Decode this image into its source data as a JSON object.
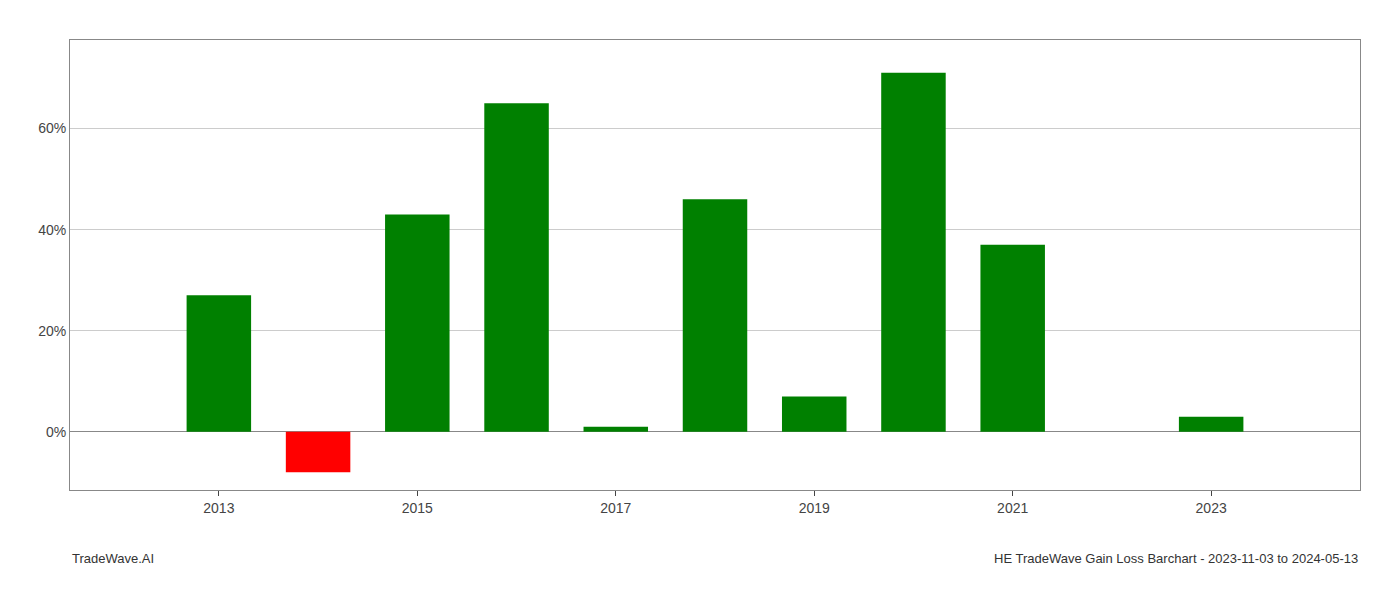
{
  "chart_data": {
    "type": "bar",
    "x": [
      2013,
      2014,
      2015,
      2016,
      2017,
      2018,
      2019,
      2020,
      2021,
      2023
    ],
    "values": [
      0.27,
      -0.08,
      0.43,
      0.65,
      0.01,
      0.46,
      0.07,
      0.71,
      0.37,
      0.03
    ],
    "colors": [
      "#008000",
      "#ff0000",
      "#008000",
      "#008000",
      "#008000",
      "#008000",
      "#008000",
      "#008000",
      "#008000",
      "#008000"
    ],
    "xlim": [
      2011.5,
      2024.5
    ],
    "xticks": [
      2013,
      2015,
      2017,
      2019,
      2021,
      2023
    ],
    "ylim": [
      -0.115,
      0.775
    ],
    "yticks": [
      {
        "value": 0.0,
        "label": "0%"
      },
      {
        "value": 0.2,
        "label": "20%"
      },
      {
        "value": 0.4,
        "label": "40%"
      },
      {
        "value": 0.6,
        "label": "60%"
      }
    ],
    "grid": "y",
    "annotations": [
      "TradeWave.AI",
      "HE TradeWave Gain Loss Barchart - 2023-11-03 to 2024-05-13"
    ]
  }
}
